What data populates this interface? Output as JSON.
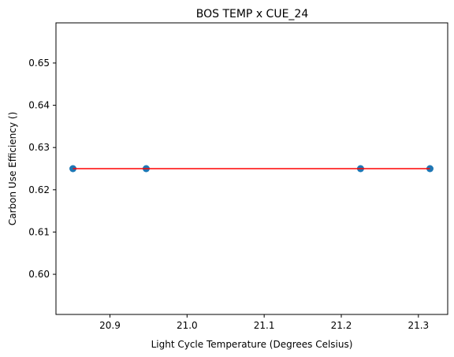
{
  "chart_data": {
    "type": "scatter",
    "title": "BOS TEMP x CUE_24",
    "xlabel": "Light Cycle Temperature (Degrees Celsius)",
    "ylabel": "Carbon Use Efficiency ()",
    "xlim": [
      20.83,
      21.338
    ],
    "ylim": [
      0.5905,
      0.6595
    ],
    "xticks": [
      20.9,
      21.0,
      21.1,
      21.2,
      21.3
    ],
    "xtick_labels": [
      "20.9",
      "21.0",
      "21.1",
      "21.2",
      "21.3"
    ],
    "yticks": [
      0.6,
      0.61,
      0.62,
      0.63,
      0.64,
      0.65
    ],
    "ytick_labels": [
      "0.60",
      "0.61",
      "0.62",
      "0.63",
      "0.64",
      "0.65"
    ],
    "grid": false,
    "series": [
      {
        "type": "scatter",
        "color": "#1f77b4",
        "points": [
          {
            "x": 20.852,
            "y": 0.625
          },
          {
            "x": 20.947,
            "y": 0.625
          },
          {
            "x": 21.225,
            "y": 0.625
          },
          {
            "x": 21.315,
            "y": 0.625
          }
        ]
      },
      {
        "type": "line",
        "color": "#ff0000",
        "points": [
          {
            "x": 20.852,
            "y": 0.625
          },
          {
            "x": 21.315,
            "y": 0.625
          }
        ]
      }
    ]
  }
}
